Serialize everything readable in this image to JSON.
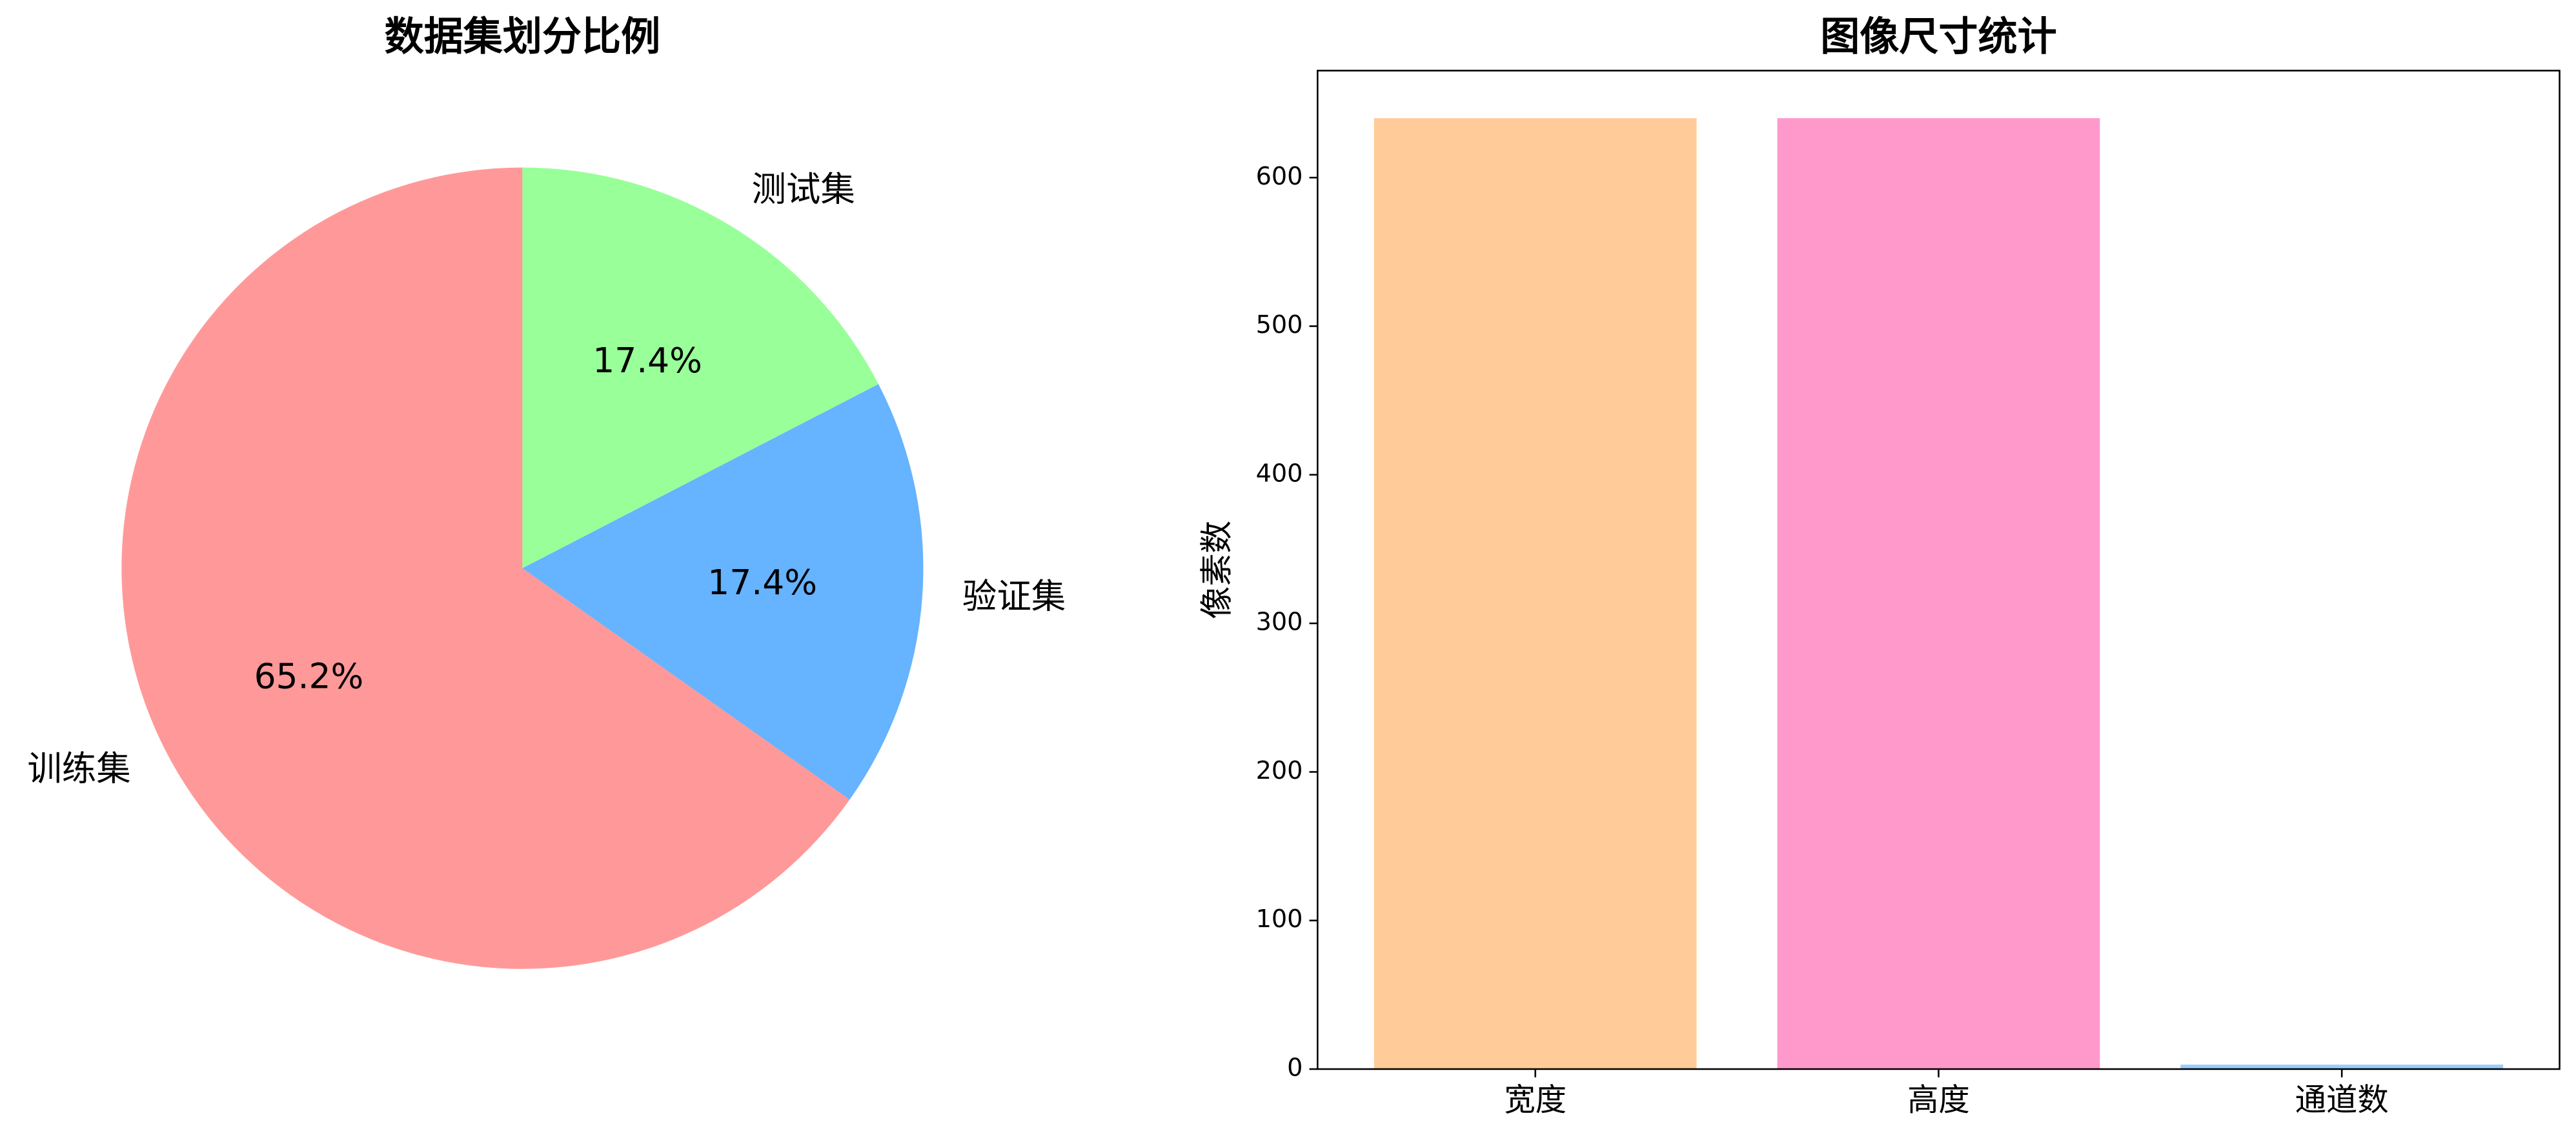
{
  "chart_data": [
    {
      "type": "pie",
      "title": "数据集划分比例",
      "categories": [
        "训练集",
        "验证集",
        "测试集"
      ],
      "values": [
        65.2,
        17.4,
        17.4
      ],
      "value_labels": [
        "65.2%",
        "17.4%",
        "17.4%"
      ],
      "colors": [
        "#ff9999",
        "#66b3ff",
        "#99ff99"
      ],
      "start_angle": 90
    },
    {
      "type": "bar",
      "title": "图像尺寸统计",
      "ylabel": "像素数",
      "categories": [
        "宽度",
        "高度",
        "通道数"
      ],
      "values": [
        640,
        640,
        3
      ],
      "colors": [
        "#ffcc99",
        "#ff99cc",
        "#99ccff"
      ],
      "ylim": [
        0,
        672
      ],
      "yticks": [
        0,
        100,
        200,
        300,
        400,
        500,
        600
      ]
    }
  ]
}
